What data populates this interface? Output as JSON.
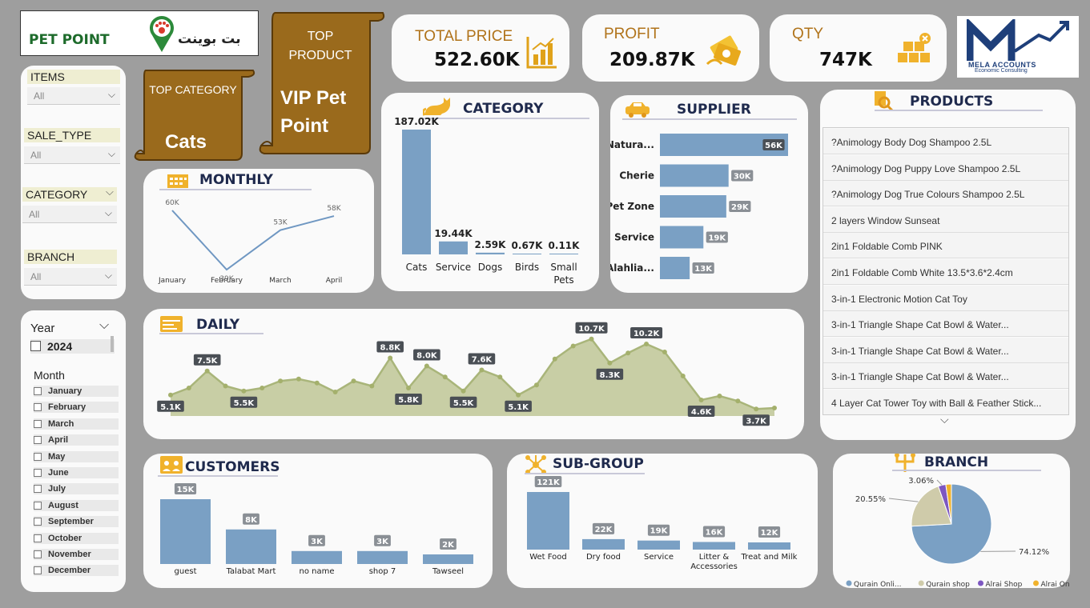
{
  "logo": {
    "text_en": "PET POINT",
    "text_ar": "بت بوينت"
  },
  "top_category": {
    "label": "TOP CATEGORY",
    "value": "Cats"
  },
  "top_product": {
    "label": "TOP PRODUCT",
    "value": "VIP Pet Point"
  },
  "kpis": [
    {
      "label": "TOTAL PRICE",
      "value": "522.60K",
      "icon": "bar-chart-icon"
    },
    {
      "label": "PROFIT",
      "value": "209.87K",
      "icon": "money-icon"
    },
    {
      "label": "QTY",
      "value": "747K",
      "icon": "boxes-icon"
    }
  ],
  "brand": {
    "name": "MELA ACCOUNTS",
    "tagline": "Economic Consulting"
  },
  "slicers": {
    "items": {
      "label": "ITEMS",
      "value": "All"
    },
    "sale_type": {
      "label": "SALE_TYPE",
      "value": "All"
    },
    "category": {
      "label": "CATEGORY",
      "value": "All"
    },
    "branch": {
      "label": "BRANCH",
      "value": "All"
    }
  },
  "date_slicer": {
    "year_label": "Year",
    "year_value": "2024",
    "month_label": "Month",
    "months": [
      "January",
      "February",
      "March",
      "April",
      "May",
      "June",
      "July",
      "August",
      "September",
      "October",
      "November",
      "December"
    ]
  },
  "products": {
    "title": "PRODUCTS",
    "items": [
      "?Animology Body Dog Shampoo 2.5L",
      "?Animology Dog Puppy Love Shampoo 2.5L",
      "?Animology Dog True Colours Shampoo 2.5L",
      "2 layers Window Sunseat",
      "2in1 Foldable Comb PINK",
      "2in1 Foldable Comb White 13.5*3.6*2.4cm",
      "3-in-1 Electronic Motion Cat Toy",
      "3-in-1 Triangle Shape Cat Bowl & Water...",
      "3-in-1 Triangle Shape Cat Bowl & Water...",
      "3-in-1 Triangle Shape Cat Bowl & Water...",
      "4 Layer Cat Tower Toy with Ball & Feather Stick..."
    ]
  },
  "chart_data": [
    {
      "id": "monthly",
      "type": "line",
      "title": "MONTHLY",
      "categories": [
        "January",
        "February",
        "March",
        "April"
      ],
      "values": [
        60,
        39,
        53,
        58
      ],
      "labels": [
        "60K",
        "39K",
        "53K",
        "58K"
      ],
      "color": "#6f97c2"
    },
    {
      "id": "category",
      "type": "bar",
      "title": "CATEGORY",
      "categories": [
        "Cats",
        "Service",
        "Dogs",
        "Birds",
        "Small Pets"
      ],
      "values": [
        187.02,
        19.44,
        2.59,
        0.67,
        0.11
      ],
      "labels": [
        "187.02K",
        "19.44K",
        "2.59K",
        "0.67K",
        "0.11K"
      ],
      "color": "#7aa0c4"
    },
    {
      "id": "supplier",
      "type": "bar",
      "orientation": "horizontal",
      "title": "SUPPLIER",
      "categories": [
        "Natura...",
        "Cherie",
        "Pet Zone",
        "Service",
        "Alahlia..."
      ],
      "values": [
        56,
        30,
        29,
        19,
        13
      ],
      "labels": [
        "56K",
        "30K",
        "29K",
        "19K",
        "13K"
      ],
      "color": "#7aa0c4"
    },
    {
      "id": "daily",
      "type": "area",
      "title": "DAILY",
      "values": [
        5.1,
        5.8,
        7.5,
        6.0,
        5.5,
        5.8,
        6.5,
        6.7,
        6.3,
        5.4,
        6.5,
        6.0,
        8.8,
        5.8,
        8.0,
        6.9,
        5.5,
        7.6,
        6.9,
        5.1,
        6.1,
        8.7,
        10.0,
        10.7,
        8.3,
        9.3,
        10.2,
        9.4,
        7.0,
        4.6,
        5.0,
        4.5,
        3.7,
        3.8
      ],
      "labeled": {
        "0": "5.1K",
        "2": "7.5K",
        "4": "5.5K",
        "12": "8.8K",
        "13": "5.8K",
        "14": "8.0K",
        "16": "5.5K",
        "17": "7.6K",
        "19": "5.1K",
        "23": "10.7K",
        "24": "8.3K",
        "26": "10.2K",
        "29": "4.6K",
        "32": "3.7K"
      },
      "color": "#a9b57a"
    },
    {
      "id": "customers",
      "type": "bar",
      "title": "CUSTOMERS",
      "categories": [
        "guest",
        "Talabat Mart",
        "no name",
        "shop 7",
        "Tawseel"
      ],
      "values": [
        15,
        8,
        3,
        3,
        2
      ],
      "labels": [
        "15K",
        "8K",
        "3K",
        "3K",
        "2K"
      ],
      "color": "#7aa0c4"
    },
    {
      "id": "subgroup",
      "type": "bar",
      "title": "SUB-GROUP",
      "categories": [
        "Wet Food",
        "Dry food",
        "Service",
        "Litter & Accessories",
        "Treat and Milk"
      ],
      "values": [
        121,
        22,
        19,
        16,
        12
      ],
      "labels": [
        "121K",
        "22K",
        "19K",
        "16K",
        "12K"
      ],
      "color": "#7aa0c4"
    },
    {
      "id": "branch",
      "type": "pie",
      "title": "BRANCH",
      "slices": [
        {
          "name": "Qurain Onli...",
          "value": 74.12,
          "label": "74.12%",
          "color": "#7aa0c4"
        },
        {
          "name": "Qurain shop",
          "value": 20.55,
          "label": "20.55%",
          "color": "#cfcbaa"
        },
        {
          "name": "Alrai Shop",
          "value": 3.06,
          "label": "3.06%",
          "color": "#7d57c1"
        },
        {
          "name": "Alrai Online",
          "value": 2.27,
          "label": "",
          "color": "#f0b22c"
        }
      ]
    }
  ]
}
